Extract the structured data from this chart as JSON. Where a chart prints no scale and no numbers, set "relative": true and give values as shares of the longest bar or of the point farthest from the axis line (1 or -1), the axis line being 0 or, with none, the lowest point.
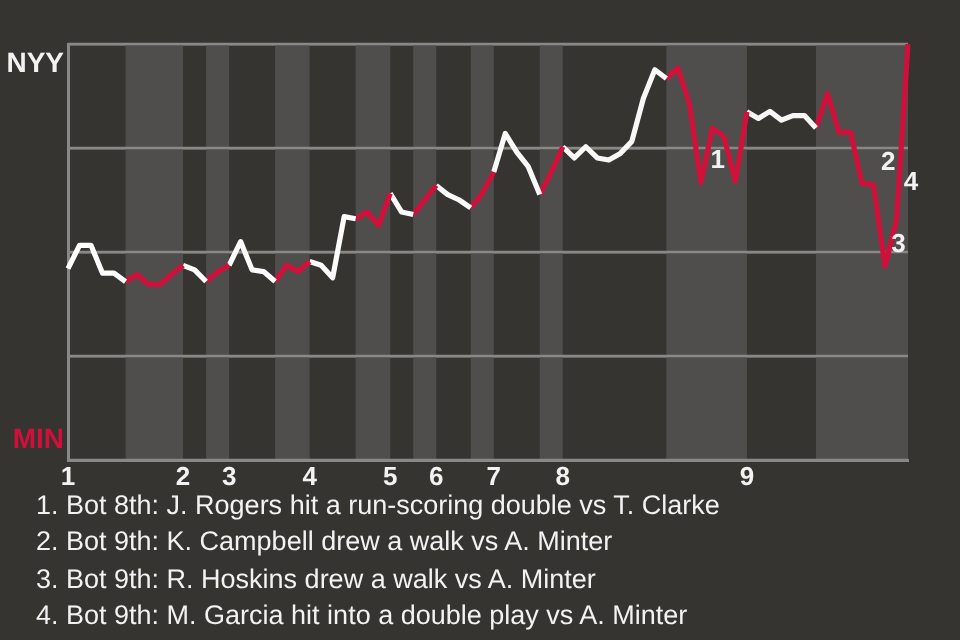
{
  "chart_data": {
    "type": "line",
    "relative": true,
    "categories": [
      "1",
      null,
      null,
      null,
      null,
      null,
      null,
      null,
      null,
      null,
      "2",
      null,
      null,
      null,
      "3",
      null,
      null,
      null,
      null,
      null,
      null,
      "4",
      null,
      null,
      null,
      null,
      null,
      null,
      "5",
      null,
      null,
      null,
      "6",
      null,
      null,
      null,
      null,
      "7",
      null,
      null,
      null,
      null,
      null,
      "8",
      null,
      null,
      null,
      null,
      null,
      null,
      null,
      null,
      null,
      null,
      null,
      null,
      null,
      null,
      null,
      "9",
      null,
      null,
      null,
      null,
      null,
      null,
      null,
      null,
      null,
      null,
      null,
      null,
      null,
      null
    ],
    "series": [
      {
        "color": "#ffffff",
        "values": [
          0.46,
          0.516,
          0.516,
          0.449,
          0.449,
          0.429,
          null,
          null,
          null,
          null,
          null,
          null,
          null,
          null,
          null,
          null,
          null,
          null,
          null,
          null,
          null,
          null,
          null,
          null,
          null,
          null,
          null,
          null,
          null,
          null,
          null,
          null,
          null,
          null,
          null,
          null,
          null,
          null,
          null,
          null,
          null,
          null,
          null,
          null,
          null,
          null,
          null,
          null,
          null,
          null,
          null,
          null,
          null,
          null,
          null,
          null,
          null,
          null,
          null,
          null,
          null,
          null,
          null,
          null,
          null,
          null,
          null,
          null,
          null,
          null,
          null,
          null,
          null,
          null
        ]
      },
      {
        "color": "#d0103b",
        "values": [
          null,
          null,
          null,
          null,
          null,
          0.429,
          0.446,
          0.422,
          0.422,
          0.446,
          0.468,
          null,
          null,
          null,
          null,
          null,
          null,
          null,
          null,
          null,
          null,
          null,
          null,
          null,
          null,
          null,
          null,
          null,
          null,
          null,
          null,
          null,
          null,
          null,
          null,
          null,
          null,
          null,
          null,
          null,
          null,
          null,
          null,
          null,
          null,
          null,
          null,
          null,
          null,
          null,
          null,
          null,
          null,
          null,
          null,
          null,
          null,
          null,
          null,
          null,
          null,
          null,
          null,
          null,
          null,
          null,
          null,
          null,
          null,
          null,
          null,
          null,
          null,
          null
        ]
      },
      {
        "color": "#fefefe",
        "values": [
          null,
          null,
          null,
          null,
          null,
          null,
          null,
          null,
          null,
          null,
          0.468,
          0.457,
          0.429,
          null,
          null,
          null,
          null,
          null,
          null,
          null,
          null,
          null,
          null,
          null,
          null,
          null,
          null,
          null,
          null,
          null,
          null,
          null,
          null,
          null,
          null,
          null,
          null,
          null,
          null,
          null,
          null,
          null,
          null,
          null,
          null,
          null,
          null,
          null,
          null,
          null,
          null,
          null,
          null,
          null,
          null,
          null,
          null,
          null,
          null,
          null,
          null,
          null,
          null,
          null,
          null,
          null,
          null,
          null,
          null,
          null,
          null,
          null,
          null,
          null
        ]
      },
      {
        "color": "#d1103a",
        "values": [
          null,
          null,
          null,
          null,
          null,
          null,
          null,
          null,
          null,
          null,
          null,
          null,
          0.429,
          0.452,
          0.468,
          null,
          null,
          null,
          null,
          null,
          null,
          null,
          null,
          null,
          null,
          null,
          null,
          null,
          null,
          null,
          null,
          null,
          null,
          null,
          null,
          null,
          null,
          null,
          null,
          null,
          null,
          null,
          null,
          null,
          null,
          null,
          null,
          null,
          null,
          null,
          null,
          null,
          null,
          null,
          null,
          null,
          null,
          null,
          null,
          null,
          null,
          null,
          null,
          null,
          null,
          null,
          null,
          null,
          null,
          null,
          null,
          null,
          null,
          null
        ]
      },
      {
        "color": "#fdfdfd",
        "values": [
          null,
          null,
          null,
          null,
          null,
          null,
          null,
          null,
          null,
          null,
          null,
          null,
          null,
          null,
          0.468,
          0.525,
          0.457,
          0.453,
          0.429,
          null,
          null,
          null,
          null,
          null,
          null,
          null,
          null,
          null,
          null,
          null,
          null,
          null,
          null,
          null,
          null,
          null,
          null,
          null,
          null,
          null,
          null,
          null,
          null,
          null,
          null,
          null,
          null,
          null,
          null,
          null,
          null,
          null,
          null,
          null,
          null,
          null,
          null,
          null,
          null,
          null,
          null,
          null,
          null,
          null,
          null,
          null,
          null,
          null,
          null,
          null,
          null,
          null,
          null,
          null
        ]
      },
      {
        "color": "#d2103a",
        "values": [
          null,
          null,
          null,
          null,
          null,
          null,
          null,
          null,
          null,
          null,
          null,
          null,
          null,
          null,
          null,
          null,
          null,
          null,
          0.429,
          0.468,
          0.453,
          0.477,
          null,
          null,
          null,
          null,
          null,
          null,
          null,
          null,
          null,
          null,
          null,
          null,
          null,
          null,
          null,
          null,
          null,
          null,
          null,
          null,
          null,
          null,
          null,
          null,
          null,
          null,
          null,
          null,
          null,
          null,
          null,
          null,
          null,
          null,
          null,
          null,
          null,
          null,
          null,
          null,
          null,
          null,
          null,
          null,
          null,
          null,
          null,
          null,
          null,
          null,
          null,
          null
        ]
      },
      {
        "color": "#fcfcfc",
        "values": [
          null,
          null,
          null,
          null,
          null,
          null,
          null,
          null,
          null,
          null,
          null,
          null,
          null,
          null,
          null,
          null,
          null,
          null,
          null,
          null,
          null,
          0.477,
          0.468,
          0.438,
          0.585,
          0.58,
          null,
          null,
          null,
          null,
          null,
          null,
          null,
          null,
          null,
          null,
          null,
          null,
          null,
          null,
          null,
          null,
          null,
          null,
          null,
          null,
          null,
          null,
          null,
          null,
          null,
          null,
          null,
          null,
          null,
          null,
          null,
          null,
          null,
          null,
          null,
          null,
          null,
          null,
          null,
          null,
          null,
          null,
          null,
          null,
          null,
          null,
          null,
          null
        ]
      },
      {
        "color": "#d3103a",
        "values": [
          null,
          null,
          null,
          null,
          null,
          null,
          null,
          null,
          null,
          null,
          null,
          null,
          null,
          null,
          null,
          null,
          null,
          null,
          null,
          null,
          null,
          null,
          null,
          null,
          null,
          0.58,
          0.596,
          0.564,
          0.641,
          null,
          null,
          null,
          null,
          null,
          null,
          null,
          null,
          null,
          null,
          null,
          null,
          null,
          null,
          null,
          null,
          null,
          null,
          null,
          null,
          null,
          null,
          null,
          null,
          null,
          null,
          null,
          null,
          null,
          null,
          null,
          null,
          null,
          null,
          null,
          null,
          null,
          null,
          null,
          null,
          null,
          null,
          null,
          null,
          null
        ]
      },
      {
        "color": "#fbfbfb",
        "values": [
          null,
          null,
          null,
          null,
          null,
          null,
          null,
          null,
          null,
          null,
          null,
          null,
          null,
          null,
          null,
          null,
          null,
          null,
          null,
          null,
          null,
          null,
          null,
          null,
          null,
          null,
          null,
          null,
          0.641,
          0.596,
          0.59,
          null,
          null,
          null,
          null,
          null,
          null,
          null,
          null,
          null,
          null,
          null,
          null,
          null,
          null,
          null,
          null,
          null,
          null,
          null,
          null,
          null,
          null,
          null,
          null,
          null,
          null,
          null,
          null,
          null,
          null,
          null,
          null,
          null,
          null,
          null,
          null,
          null,
          null,
          null,
          null,
          null,
          null,
          null
        ]
      },
      {
        "color": "#cf103a",
        "values": [
          null,
          null,
          null,
          null,
          null,
          null,
          null,
          null,
          null,
          null,
          null,
          null,
          null,
          null,
          null,
          null,
          null,
          null,
          null,
          null,
          null,
          null,
          null,
          null,
          null,
          null,
          null,
          null,
          null,
          null,
          0.59,
          0.625,
          0.66,
          null,
          null,
          null,
          null,
          null,
          null,
          null,
          null,
          null,
          null,
          null,
          null,
          null,
          null,
          null,
          null,
          null,
          null,
          null,
          null,
          null,
          null,
          null,
          null,
          null,
          null,
          null,
          null,
          null,
          null,
          null,
          null,
          null,
          null,
          null,
          null,
          null,
          null,
          null,
          null,
          null
        ]
      },
      {
        "color": "#fafafa",
        "values": [
          null,
          null,
          null,
          null,
          null,
          null,
          null,
          null,
          null,
          null,
          null,
          null,
          null,
          null,
          null,
          null,
          null,
          null,
          null,
          null,
          null,
          null,
          null,
          null,
          null,
          null,
          null,
          null,
          null,
          null,
          null,
          null,
          0.66,
          0.638,
          0.625,
          0.606,
          null,
          null,
          null,
          null,
          null,
          null,
          null,
          null,
          null,
          null,
          null,
          null,
          null,
          null,
          null,
          null,
          null,
          null,
          null,
          null,
          null,
          null,
          null,
          null,
          null,
          null,
          null,
          null,
          null,
          null,
          null,
          null,
          null,
          null,
          null,
          null,
          null,
          null
        ]
      },
      {
        "color": "#ce103a",
        "values": [
          null,
          null,
          null,
          null,
          null,
          null,
          null,
          null,
          null,
          null,
          null,
          null,
          null,
          null,
          null,
          null,
          null,
          null,
          null,
          null,
          null,
          null,
          null,
          null,
          null,
          null,
          null,
          null,
          null,
          null,
          null,
          null,
          null,
          null,
          null,
          0.606,
          0.641,
          0.692,
          null,
          null,
          null,
          null,
          null,
          null,
          null,
          null,
          null,
          null,
          null,
          null,
          null,
          null,
          null,
          null,
          null,
          null,
          null,
          null,
          null,
          null,
          null,
          null,
          null,
          null,
          null,
          null,
          null,
          null,
          null,
          null,
          null,
          null,
          null,
          null
        ]
      },
      {
        "color": "#f9f9f9",
        "values": [
          null,
          null,
          null,
          null,
          null,
          null,
          null,
          null,
          null,
          null,
          null,
          null,
          null,
          null,
          null,
          null,
          null,
          null,
          null,
          null,
          null,
          null,
          null,
          null,
          null,
          null,
          null,
          null,
          null,
          null,
          null,
          null,
          null,
          null,
          null,
          null,
          null,
          0.692,
          0.785,
          0.74,
          0.705,
          0.638,
          null,
          null,
          null,
          null,
          null,
          null,
          null,
          null,
          null,
          null,
          null,
          null,
          null,
          null,
          null,
          null,
          null,
          null,
          null,
          null,
          null,
          null,
          null,
          null,
          null,
          null,
          null,
          null,
          null,
          null,
          null,
          null
        ]
      },
      {
        "color": "#d0113a",
        "values": [
          null,
          null,
          null,
          null,
          null,
          null,
          null,
          null,
          null,
          null,
          null,
          null,
          null,
          null,
          null,
          null,
          null,
          null,
          null,
          null,
          null,
          null,
          null,
          null,
          null,
          null,
          null,
          null,
          null,
          null,
          null,
          null,
          null,
          null,
          null,
          null,
          null,
          null,
          null,
          null,
          null,
          0.638,
          0.692,
          0.753,
          null,
          null,
          null,
          null,
          null,
          null,
          null,
          null,
          null,
          null,
          null,
          null,
          null,
          null,
          null,
          null,
          null,
          null,
          null,
          null,
          null,
          null,
          null,
          null,
          null,
          null,
          null,
          null,
          null,
          null
        ]
      },
      {
        "color": "#f8f8f8",
        "values": [
          null,
          null,
          null,
          null,
          null,
          null,
          null,
          null,
          null,
          null,
          null,
          null,
          null,
          null,
          null,
          null,
          null,
          null,
          null,
          null,
          null,
          null,
          null,
          null,
          null,
          null,
          null,
          null,
          null,
          null,
          null,
          null,
          null,
          null,
          null,
          null,
          null,
          null,
          null,
          null,
          null,
          null,
          null,
          0.753,
          0.726,
          0.753,
          0.726,
          0.721,
          0.737,
          0.766,
          0.869,
          0.938,
          0.917,
          null,
          null,
          null,
          null,
          null,
          null,
          null,
          null,
          null,
          null,
          null,
          null,
          null,
          null,
          null,
          null,
          null,
          null,
          null,
          null,
          null
        ]
      },
      {
        "color": "#d0123a",
        "values": [
          null,
          null,
          null,
          null,
          null,
          null,
          null,
          null,
          null,
          null,
          null,
          null,
          null,
          null,
          null,
          null,
          null,
          null,
          null,
          null,
          null,
          null,
          null,
          null,
          null,
          null,
          null,
          null,
          null,
          null,
          null,
          null,
          null,
          null,
          null,
          null,
          null,
          null,
          null,
          null,
          null,
          null,
          null,
          null,
          null,
          null,
          null,
          null,
          null,
          null,
          null,
          null,
          0.917,
          0.942,
          0.857,
          0.667,
          0.798,
          0.777,
          0.67,
          0.837,
          null,
          null,
          null,
          null,
          null,
          null,
          null,
          null,
          null,
          null,
          null,
          null,
          null,
          null
        ]
      },
      {
        "color": "#f7f7f7",
        "values": [
          null,
          null,
          null,
          null,
          null,
          null,
          null,
          null,
          null,
          null,
          null,
          null,
          null,
          null,
          null,
          null,
          null,
          null,
          null,
          null,
          null,
          null,
          null,
          null,
          null,
          null,
          null,
          null,
          null,
          null,
          null,
          null,
          null,
          null,
          null,
          null,
          null,
          null,
          null,
          null,
          null,
          null,
          null,
          null,
          null,
          null,
          null,
          null,
          null,
          null,
          null,
          null,
          null,
          null,
          null,
          null,
          null,
          null,
          null,
          0.837,
          0.821,
          0.838,
          0.817,
          0.828,
          0.828,
          0.798,
          null,
          null,
          null,
          null,
          null,
          null,
          null,
          null
        ]
      },
      {
        "color": "#d0103a",
        "values": [
          null,
          null,
          null,
          null,
          null,
          null,
          null,
          null,
          null,
          null,
          null,
          null,
          null,
          null,
          null,
          null,
          null,
          null,
          null,
          null,
          null,
          null,
          null,
          null,
          null,
          null,
          null,
          null,
          null,
          null,
          null,
          null,
          null,
          null,
          null,
          null,
          null,
          null,
          null,
          null,
          null,
          null,
          null,
          null,
          null,
          null,
          null,
          null,
          null,
          null,
          null,
          null,
          null,
          null,
          null,
          null,
          null,
          null,
          null,
          null,
          null,
          null,
          null,
          null,
          null,
          0.798,
          0.881,
          0.788,
          0.788,
          0.665,
          0.662,
          0.466,
          0.577,
          1
        ]
      }
    ],
    "grid": "y",
    "annotations": [
      "NYY",
      "MIN",
      "1",
      "2",
      "3",
      "4",
      "1. Bot 8th: J. Rogers hit a run-scoring double vs T. Clarke",
      "2. Bot 9th: K. Campbell drew a walk vs A. Minter",
      "3. Bot 9th: R. Hoskins drew a walk vs A. Minter",
      "4. Bot 9th: M. Garcia hit into a double play vs A. Minter"
    ]
  }
}
